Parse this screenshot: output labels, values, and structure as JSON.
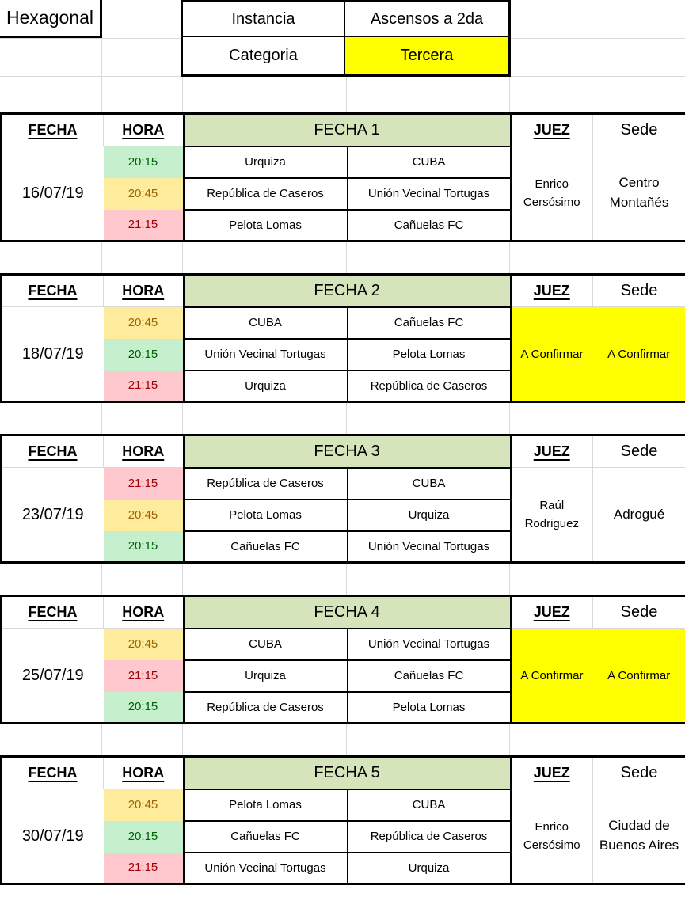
{
  "header": {
    "tournament": "Hexagonal",
    "instancia_label": "Instancia",
    "instancia_value": "Ascensos a 2da",
    "categoria_label": "Categoria",
    "categoria_value": "Tercera"
  },
  "columns": {
    "fecha": "FECHA",
    "hora": "HORA",
    "juez": "JUEZ",
    "sede": "Sede"
  },
  "fixtures": [
    {
      "round_label": "FECHA 1",
      "date": "16/07/19",
      "juez": "Enrico Cersósimo",
      "sede": "Centro Montañés",
      "pending": false,
      "matches": [
        {
          "time": "20:15",
          "status": "green",
          "home": "Urquiza",
          "away": "CUBA"
        },
        {
          "time": "20:45",
          "status": "yellow",
          "home": "República de Caseros",
          "away": "Unión Vecinal Tortugas"
        },
        {
          "time": "21:15",
          "status": "red",
          "home": "Pelota Lomas",
          "away": "Cañuelas FC"
        }
      ]
    },
    {
      "round_label": "FECHA 2",
      "date": "18/07/19",
      "juez": "A Confirmar",
      "sede": "A Confirmar",
      "pending": true,
      "matches": [
        {
          "time": "20:45",
          "status": "yellow",
          "home": "CUBA",
          "away": "Cañuelas FC"
        },
        {
          "time": "20:15",
          "status": "green",
          "home": "Unión Vecinal Tortugas",
          "away": "Pelota Lomas"
        },
        {
          "time": "21:15",
          "status": "red",
          "home": "Urquiza",
          "away": "República de Caseros"
        }
      ]
    },
    {
      "round_label": "FECHA 3",
      "date": "23/07/19",
      "juez": "Raúl Rodriguez",
      "sede": "Adrogué",
      "pending": false,
      "matches": [
        {
          "time": "21:15",
          "status": "red",
          "home": "República de Caseros",
          "away": "CUBA"
        },
        {
          "time": "20:45",
          "status": "yellow",
          "home": "Pelota Lomas",
          "away": "Urquiza"
        },
        {
          "time": "20:15",
          "status": "green",
          "home": "Cañuelas FC",
          "away": "Unión Vecinal Tortugas"
        }
      ]
    },
    {
      "round_label": "FECHA 4",
      "date": "25/07/19",
      "juez": "A Confirmar",
      "sede": "A Confirmar",
      "pending": true,
      "matches": [
        {
          "time": "20:45",
          "status": "yellow",
          "home": "CUBA",
          "away": "Unión Vecinal Tortugas"
        },
        {
          "time": "21:15",
          "status": "red",
          "home": "Urquiza",
          "away": "Cañuelas FC"
        },
        {
          "time": "20:15",
          "status": "green",
          "home": "República de Caseros",
          "away": "Pelota Lomas"
        }
      ]
    },
    {
      "round_label": "FECHA 5",
      "date": "30/07/19",
      "juez": "Enrico Cersósimo",
      "sede": "Ciudad de Buenos Aires",
      "pending": false,
      "matches": [
        {
          "time": "20:45",
          "status": "yellow",
          "home": "Pelota Lomas",
          "away": "CUBA"
        },
        {
          "time": "20:15",
          "status": "green",
          "home": "Cañuelas FC",
          "away": "República de Caseros"
        },
        {
          "time": "21:15",
          "status": "red",
          "home": "Unión Vecinal Tortugas",
          "away": "Urquiza"
        }
      ]
    }
  ],
  "colors": {
    "round_band_bg": "#d6e4bc",
    "highlight_yellow": "#ffff00",
    "time_green_bg": "#c6efce",
    "time_green_text": "#006100",
    "time_yellow_bg": "#ffeb9c",
    "time_yellow_text": "#9c6500",
    "time_red_bg": "#ffc7ce",
    "time_red_text": "#9c0006",
    "gridline": "#d9d9d9",
    "border_black": "#000000"
  }
}
